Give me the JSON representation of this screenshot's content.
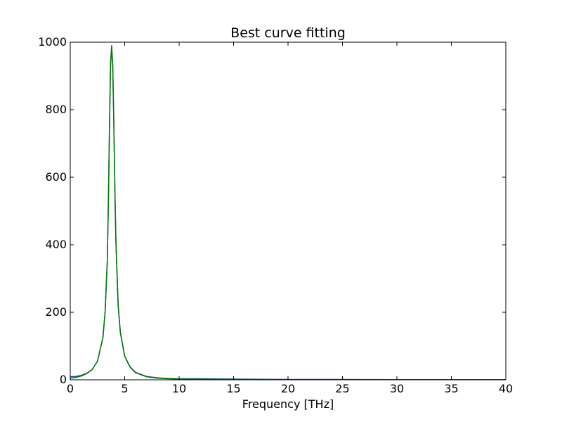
{
  "chart_data": {
    "type": "line",
    "title": "Best curve fitting",
    "xlabel": "Frequency [THz]",
    "ylabel": "",
    "xlim": [
      0,
      40
    ],
    "ylim": [
      0,
      1000
    ],
    "x_ticks": [
      0,
      5,
      10,
      15,
      20,
      25,
      30,
      35,
      40
    ],
    "y_ticks": [
      0,
      200,
      400,
      600,
      800,
      1000
    ],
    "x_tick_labels": [
      "0",
      "5",
      "10",
      "15",
      "20",
      "25",
      "30",
      "35",
      "40"
    ],
    "y_tick_labels": [
      "0",
      "200",
      "400",
      "600",
      "800",
      "1000"
    ],
    "grid": false,
    "legend": "none",
    "series": [
      {
        "color": "#1f3f9f",
        "x": [
          0,
          0.5,
          1,
          1.5,
          2,
          2.5,
          3,
          3.2,
          3.4,
          3.5,
          3.6,
          3.7,
          3.8,
          3.9,
          4.0,
          4.1,
          4.2,
          4.4,
          4.6,
          5,
          5.5,
          6,
          7,
          8,
          9,
          10,
          12,
          15,
          20,
          25,
          30,
          35,
          40
        ],
        "y": [
          9,
          10,
          13,
          19,
          30,
          55,
          125,
          200,
          350,
          520,
          740,
          930,
          985,
          930,
          760,
          560,
          400,
          220,
          140,
          70,
          38,
          22,
          10,
          6,
          4,
          3,
          3,
          2,
          1,
          1,
          0.5,
          0.5,
          0.5
        ]
      },
      {
        "color": "#007a00",
        "x": [
          0,
          0.5,
          1,
          1.5,
          2,
          2.5,
          3,
          3.2,
          3.4,
          3.5,
          3.6,
          3.7,
          3.8,
          3.9,
          4.0,
          4.1,
          4.2,
          4.4,
          4.6,
          5,
          5.5,
          6,
          7,
          8,
          9,
          10,
          12,
          15,
          20,
          25,
          30,
          35,
          40
        ],
        "y": [
          5,
          7,
          11,
          18,
          30,
          55,
          125,
          200,
          350,
          525,
          745,
          935,
          990,
          935,
          765,
          565,
          405,
          222,
          141,
          70,
          37,
          21,
          9,
          5,
          3,
          2,
          1.5,
          1,
          0.5,
          0.3,
          0.2,
          0.2,
          0.1
        ]
      }
    ]
  }
}
